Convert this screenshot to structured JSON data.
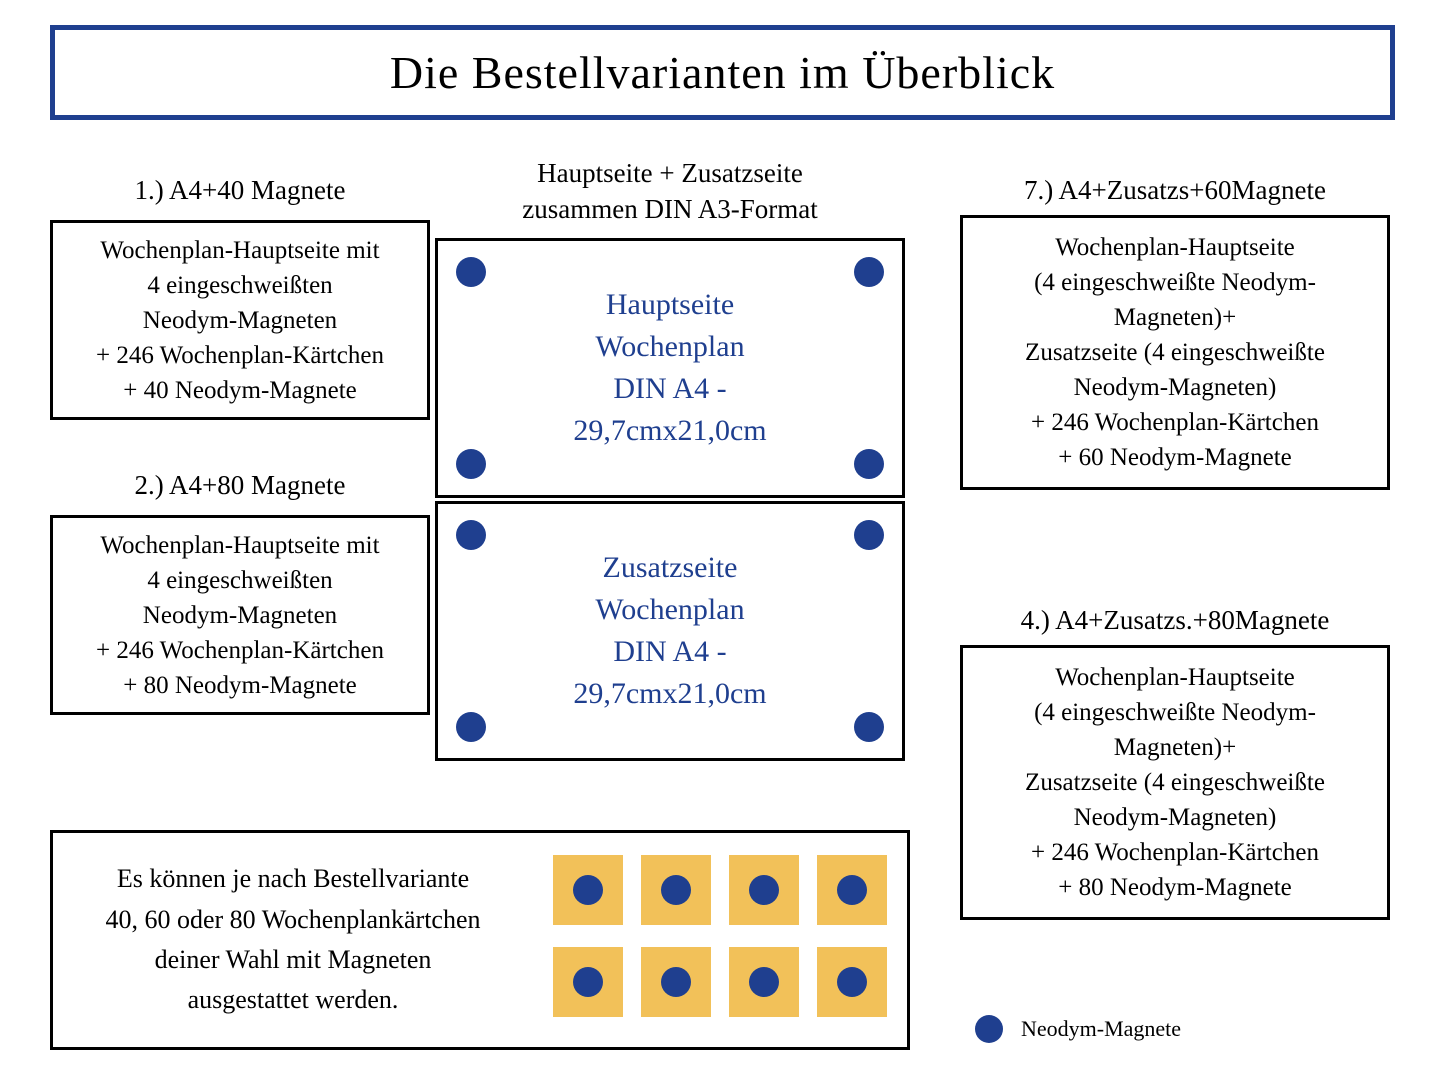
{
  "title": "Die Bestellvarianten im Überblick",
  "colors": {
    "border_blue": "#1f3f8f",
    "dot_blue": "#1f3f8f",
    "card_yellow": "#f2c159",
    "black": "#000000",
    "bg": "#ffffff"
  },
  "variants": {
    "v1": {
      "head": "1.) A4+40 Magnete",
      "body": "Wochenplan-Hauptseite mit\n4 eingeschweißten\nNeodym-Magneten\n+ 246 Wochenplan-Kärtchen\n+ 40 Neodym-Magnete"
    },
    "v2": {
      "head": "2.) A4+80 Magnete",
      "body": "Wochenplan-Hauptseite mit\n4 eingeschweißten\nNeodym-Magneten\n+ 246 Wochenplan-Kärtchen\n+ 80 Neodym-Magnete"
    },
    "v7": {
      "head": "7.) A4+Zusatzs+60Magnete",
      "body": "Wochenplan-Hauptseite\n(4 eingeschweißte Neodym-\nMagneten)+\nZusatzseite (4 eingeschweißte\nNeodym-Magneten)\n+ 246 Wochenplan-Kärtchen\n+ 60 Neodym-Magnete"
    },
    "v4": {
      "head": "4.) A4+Zusatzs.+80Magnete",
      "body": "Wochenplan-Hauptseite\n(4 eingeschweißte Neodym-\nMagneten)+\nZusatzseite (4 eingeschweißte\nNeodym-Magneten)\n+ 246 Wochenplan-Kärtchen\n+ 80 Neodym-Magnete"
    }
  },
  "center": {
    "head": "Hauptseite + Zusatzseite\nzusammen DIN A3-Format",
    "main_page": "Hauptseite\nWochenplan\nDIN A4 -\n29,7cmx21,0cm",
    "extra_page": "Zusatzseite\nWochenplan\nDIN A4 -\n29,7cmx21,0cm"
  },
  "bottom_text": "Es können je nach Bestellvariante\n40, 60 oder 80 Wochenplankärtchen\ndeiner Wahl mit Magneten\nausgestattet werden.",
  "legend": "Neodym-Magnete",
  "card_grid": {
    "rows": 2,
    "cols": 4
  },
  "page_box_dots": 4
}
